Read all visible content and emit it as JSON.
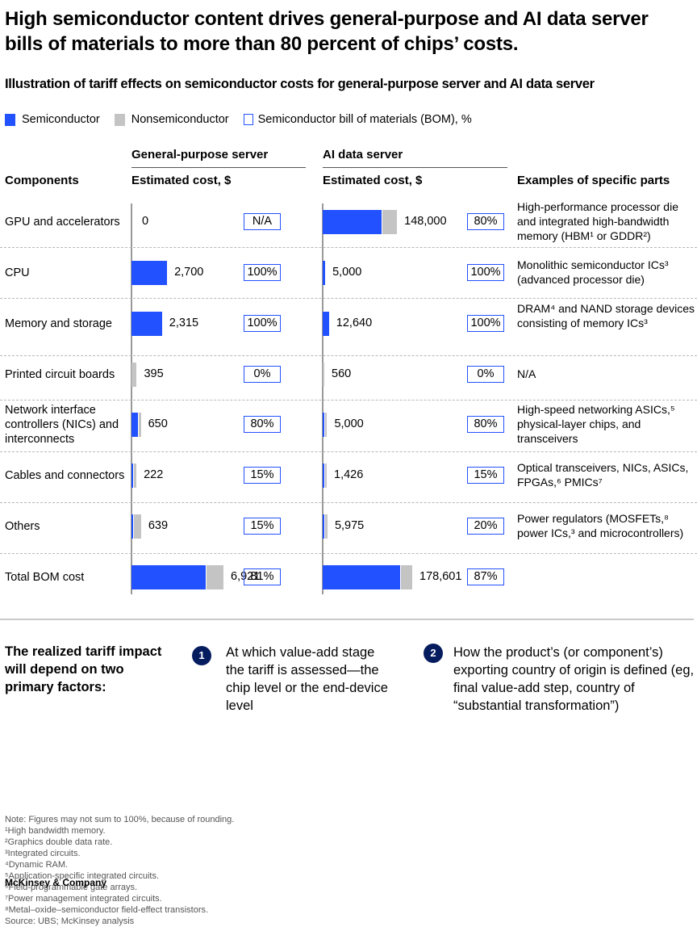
{
  "title": "High semiconductor content drives general-purpose and AI data server bills of materials to more than 80 percent of chips’ costs.",
  "subtitle": "Illustration of tariff effects on semiconductor costs for general-purpose server and AI data server",
  "legend": {
    "semiconductor": "Semiconductor",
    "nonsemiconductor": "Nonsemiconductor",
    "bom": "Semiconductor bill of materials (BOM), %"
  },
  "colors": {
    "semiconductor": "#2251ff",
    "nonsemiconductor": "#c4c4c4",
    "badge": "#051c5e"
  },
  "headers": {
    "components": "Components",
    "gp_server": "General-purpose server",
    "ai_server": "AI data server",
    "estimated_cost": "Estimated cost, $",
    "examples": "Examples of specific parts"
  },
  "chart_data": {
    "type": "bar",
    "orientation": "horizontal-stacked",
    "title": "Illustration of tariff effects on semiconductor costs for general-purpose server and AI data server",
    "categories": [
      "GPU and accelerators",
      "CPU",
      "Memory and storage",
      "Printed circuit boards",
      "Network interface controllers (NICs) and interconnects",
      "Cables and connectors",
      "Others",
      "Total BOM cost"
    ],
    "panels": [
      {
        "name": "General-purpose server",
        "xlabel": "Estimated cost, $",
        "cost": [
          0,
          2700,
          2315,
          395,
          650,
          222,
          639,
          6921
        ],
        "cost_labels": [
          "0",
          "2,700",
          "2,315",
          "395",
          "650",
          "222",
          "639",
          "6,921"
        ],
        "semiconductor_bom_pct": [
          null,
          100,
          100,
          0,
          80,
          15,
          15,
          81
        ],
        "pct_labels": [
          "N/A",
          "100%",
          "100%",
          "0%",
          "80%",
          "15%",
          "15%",
          "81%"
        ]
      },
      {
        "name": "AI data server",
        "xlabel": "Estimated cost, $",
        "cost": [
          148000,
          5000,
          12640,
          560,
          5000,
          1426,
          5975,
          178601
        ],
        "cost_labels": [
          "148,000",
          "5,000",
          "12,640",
          "560",
          "5,000",
          "1,426",
          "5,975",
          "178,601"
        ],
        "semiconductor_bom_pct": [
          80,
          100,
          100,
          0,
          80,
          15,
          20,
          87
        ],
        "pct_labels": [
          "80%",
          "100%",
          "100%",
          "0%",
          "80%",
          "15%",
          "20%",
          "87%"
        ]
      }
    ],
    "legend": [
      "Semiconductor",
      "Nonsemiconductor",
      "Semiconductor bill of materials (BOM), %"
    ],
    "legend_position": "top-left",
    "grid": false
  },
  "examples": [
    "High-performance processor die and integrated high-bandwidth memory (HBM¹ or GDDR²)",
    "Monolithic semiconductor ICs³ (advanced processor die)",
    "DRAM⁴ and NAND storage devices consisting of memory ICs³",
    "N/A",
    "High-speed networking ASICs,⁵ physical-layer chips, and transceivers",
    "Optical transceivers, NICs, ASICs, FPGAs,⁶ PMICs⁷",
    "Power regulators (MOSFETs,⁸ power ICs,³ and microcontrollers)",
    ""
  ],
  "factors": {
    "heading": "The realized tariff impact will depend on two primary factors:",
    "items": [
      {
        "number": "1",
        "text": "At which value-add stage the tariff is assessed—the chip level or the end-device level"
      },
      {
        "number": "2",
        "text": "How the product’s (or component’s) exporting country of origin is defined (eg, final value-add step, country of “substantial transformation”)"
      }
    ]
  },
  "notes": [
    "Note: Figures may not sum to 100%, because of rounding.",
    "¹High bandwidth memory.",
    "²Graphics double data rate.",
    "³Integrated circuits.",
    "⁴Dynamic RAM.",
    "⁵Application-specific integrated circuits.",
    "⁶Field-programmable gate arrays.",
    "⁷Power management integrated circuits.",
    "⁸Metal–oxide–semiconductor field-effect transistors.",
    "Source: UBS; McKinsey analysis"
  ],
  "footer": "McKinsey & Company"
}
